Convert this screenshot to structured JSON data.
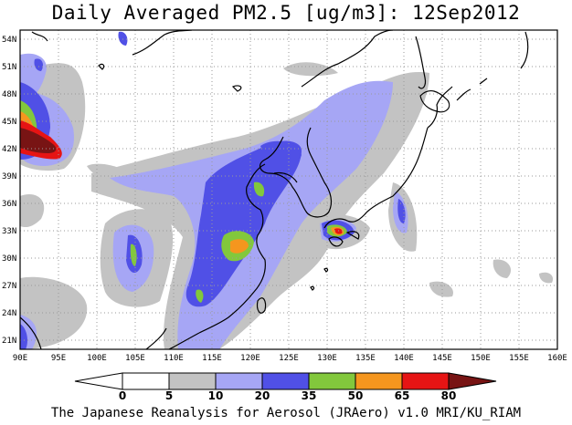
{
  "title": "Daily Averaged PM2.5 [ug/m3]: 12Sep2012",
  "credit": "The Japanese Reanalysis for Aerosol (JRAero) v1.0 MRI/KU_RIAM",
  "map": {
    "lon_range": [
      90,
      160
    ],
    "lat_range": [
      20,
      55
    ],
    "lon_ticks": [
      "90E",
      "95E",
      "100E",
      "105E",
      "110E",
      "115E",
      "120E",
      "125E",
      "130E",
      "135E",
      "140E",
      "145E",
      "150E",
      "155E",
      "160E"
    ],
    "lat_ticks": [
      "54N",
      "51N",
      "48N",
      "45N",
      "42N",
      "39N",
      "36N",
      "33N",
      "30N",
      "27N",
      "24N",
      "21N"
    ],
    "grid": "dotted"
  },
  "colorbar": {
    "labels": [
      "0",
      "5",
      "10",
      "20",
      "35",
      "50",
      "65",
      "80"
    ],
    "colors": [
      "#ffffff",
      "#ffffff",
      "#c3c3c3",
      "#a6a6f5",
      "#5050e6",
      "#82c83c",
      "#f5961e",
      "#e61414",
      "#781414"
    ]
  }
}
